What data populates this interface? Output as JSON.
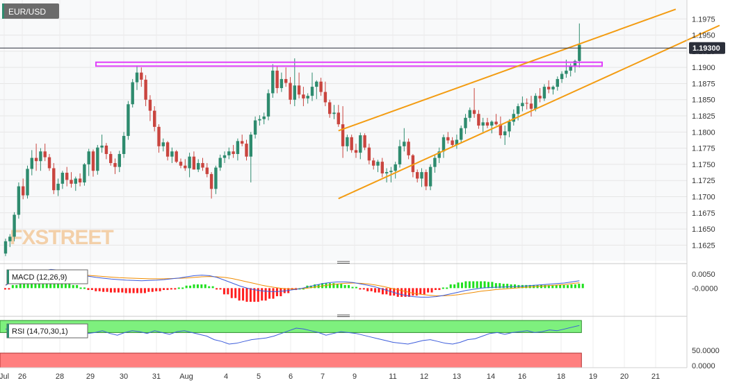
{
  "symbol": "EUR/USD",
  "watermark": "FXSTREET",
  "current_price_label": "1.19300",
  "colors": {
    "bull": "#2e8b6e",
    "bear": "#c9453f",
    "channel": "#f39c12",
    "resistance": "#e040fb",
    "macd_line": "#3b5bdb",
    "signal_line": "#f08c00",
    "hist_pos": "#1ee01e",
    "hist_neg": "#ff1e1e",
    "rsi_line": "#3b5bdb",
    "rsi_overbought": "#7ef07e",
    "rsi_oversold": "#ff7f7f"
  },
  "chart_data": [
    {
      "type": "candlestick",
      "title": "EUR/USD",
      "ylim": [
        1.1605,
        1.2
      ],
      "y_ticks": [
        "1.1975",
        "1.1950",
        "1.1925",
        "1.1900",
        "1.1875",
        "1.1850",
        "1.1825",
        "1.1800",
        "1.1775",
        "1.1750",
        "1.1725",
        "1.1700",
        "1.1675",
        "1.1650",
        "1.1625"
      ],
      "x_ticks": [
        "Jul",
        "26",
        "28",
        "29",
        "30",
        "31",
        "Aug",
        "4",
        "5",
        "6",
        "7",
        "9",
        "11",
        "12",
        "13",
        "14",
        "16",
        "18",
        "19",
        "20",
        "21"
      ],
      "last_price": 1.193,
      "candles": [
        [
          1.1612,
          1.1635,
          1.1608,
          1.1631
        ],
        [
          1.1631,
          1.1642,
          1.1622,
          1.1638
        ],
        [
          1.1638,
          1.1676,
          1.1631,
          1.1672
        ],
        [
          1.1672,
          1.1722,
          1.1666,
          1.1716
        ],
        [
          1.1716,
          1.1728,
          1.1696,
          1.1702
        ],
        [
          1.1702,
          1.1748,
          1.1697,
          1.1743
        ],
        [
          1.1743,
          1.1772,
          1.1733,
          1.176
        ],
        [
          1.176,
          1.1782,
          1.174,
          1.1755
        ],
        [
          1.1755,
          1.1775,
          1.174,
          1.177
        ],
        [
          1.177,
          1.1782,
          1.1755,
          1.1761
        ],
        [
          1.1761,
          1.1766,
          1.174,
          1.1744
        ],
        [
          1.1744,
          1.1752,
          1.1704,
          1.171
        ],
        [
          1.171,
          1.1728,
          1.1701,
          1.172
        ],
        [
          1.172,
          1.174,
          1.1712,
          1.1737
        ],
        [
          1.1737,
          1.1746,
          1.1716,
          1.1726
        ],
        [
          1.1726,
          1.1738,
          1.1714,
          1.172
        ],
        [
          1.172,
          1.1731,
          1.1709,
          1.1728
        ],
        [
          1.1728,
          1.1736,
          1.1716,
          1.1722
        ],
        [
          1.1722,
          1.1752,
          1.1717,
          1.175
        ],
        [
          1.175,
          1.1774,
          1.1732,
          1.177
        ],
        [
          1.177,
          1.1773,
          1.1731,
          1.174
        ],
        [
          1.174,
          1.178,
          1.1734,
          1.1776
        ],
        [
          1.1776,
          1.1796,
          1.1768,
          1.1779
        ],
        [
          1.1779,
          1.1783,
          1.1758,
          1.1766
        ],
        [
          1.1766,
          1.177,
          1.1748,
          1.1752
        ],
        [
          1.1752,
          1.1759,
          1.1735,
          1.1746
        ],
        [
          1.1746,
          1.1771,
          1.1738,
          1.1766
        ],
        [
          1.1766,
          1.18,
          1.176,
          1.1794
        ],
        [
          1.1794,
          1.1848,
          1.1788,
          1.1843
        ],
        [
          1.1843,
          1.1882,
          1.1838,
          1.1877
        ],
        [
          1.1877,
          1.1903,
          1.1865,
          1.1892
        ],
        [
          1.1892,
          1.19,
          1.187,
          1.1881
        ],
        [
          1.1881,
          1.1888,
          1.184,
          1.185
        ],
        [
          1.185,
          1.1857,
          1.1817,
          1.1833
        ],
        [
          1.1833,
          1.184,
          1.1801,
          1.1808
        ],
        [
          1.1808,
          1.1812,
          1.1768,
          1.1778
        ],
        [
          1.1778,
          1.179,
          1.177,
          1.1784
        ],
        [
          1.1784,
          1.1786,
          1.1756,
          1.1762
        ],
        [
          1.1762,
          1.1776,
          1.1752,
          1.177
        ],
        [
          1.177,
          1.1772,
          1.1752,
          1.1754
        ],
        [
          1.1754,
          1.1759,
          1.1744,
          1.1748
        ],
        [
          1.1748,
          1.1758,
          1.174,
          1.1744
        ],
        [
          1.1744,
          1.1768,
          1.173,
          1.1762
        ],
        [
          1.1762,
          1.177,
          1.1742,
          1.1742
        ],
        [
          1.1742,
          1.1758,
          1.1738,
          1.1752
        ],
        [
          1.1752,
          1.176,
          1.174,
          1.1745
        ],
        [
          1.1745,
          1.1752,
          1.173,
          1.1735
        ],
        [
          1.1735,
          1.1738,
          1.1697,
          1.1712
        ],
        [
          1.1712,
          1.1748,
          1.1704,
          1.1745
        ],
        [
          1.1745,
          1.1765,
          1.174,
          1.176
        ],
        [
          1.176,
          1.177,
          1.1752,
          1.1764
        ],
        [
          1.1764,
          1.1776,
          1.1758,
          1.177
        ],
        [
          1.177,
          1.178,
          1.176,
          1.1766
        ],
        [
          1.1766,
          1.179,
          1.1756,
          1.1786
        ],
        [
          1.1786,
          1.1796,
          1.1778,
          1.1782
        ],
        [
          1.1782,
          1.1788,
          1.1756,
          1.1762
        ],
        [
          1.1762,
          1.18,
          1.1722,
          1.1796
        ],
        [
          1.1796,
          1.1824,
          1.179,
          1.1818
        ],
        [
          1.1818,
          1.1826,
          1.181,
          1.182
        ],
        [
          1.182,
          1.183,
          1.1812,
          1.1824
        ],
        [
          1.1824,
          1.1866,
          1.1818,
          1.186
        ],
        [
          1.186,
          1.1905,
          1.1853,
          1.1895
        ],
        [
          1.1895,
          1.1902,
          1.186,
          1.1868
        ],
        [
          1.1868,
          1.1892,
          1.1862,
          1.1882
        ],
        [
          1.1882,
          1.19,
          1.187,
          1.1876
        ],
        [
          1.1876,
          1.1885,
          1.1843,
          1.185
        ],
        [
          1.185,
          1.1914,
          1.184,
          1.1872
        ],
        [
          1.1872,
          1.1892,
          1.1852,
          1.1858
        ],
        [
          1.1858,
          1.187,
          1.184,
          1.1852
        ],
        [
          1.1852,
          1.186,
          1.1844,
          1.1856
        ],
        [
          1.1856,
          1.1892,
          1.1848,
          1.187
        ],
        [
          1.187,
          1.188,
          1.1851,
          1.1878
        ],
        [
          1.1878,
          1.1884,
          1.1856,
          1.1862
        ],
        [
          1.1862,
          1.1878,
          1.184,
          1.1846
        ],
        [
          1.1846,
          1.185,
          1.1822,
          1.1828
        ],
        [
          1.1828,
          1.1842,
          1.182,
          1.183
        ],
        [
          1.183,
          1.1842,
          1.1808,
          1.1812
        ],
        [
          1.1812,
          1.184,
          1.176,
          1.1778
        ],
        [
          1.1778,
          1.1796,
          1.177,
          1.1792
        ],
        [
          1.1792,
          1.1796,
          1.1768,
          1.1772
        ],
        [
          1.1772,
          1.1782,
          1.176,
          1.1768
        ],
        [
          1.1768,
          1.1799,
          1.1758,
          1.1795
        ],
        [
          1.1795,
          1.1798,
          1.1772,
          1.1776
        ],
        [
          1.1776,
          1.1782,
          1.175,
          1.1756
        ],
        [
          1.1756,
          1.176,
          1.1742,
          1.1748
        ],
        [
          1.1748,
          1.1757,
          1.1738,
          1.1754
        ],
        [
          1.1754,
          1.176,
          1.173,
          1.1736
        ],
        [
          1.1736,
          1.1744,
          1.1722,
          1.1738
        ],
        [
          1.1738,
          1.1746,
          1.1722,
          1.174
        ],
        [
          1.174,
          1.1754,
          1.1728,
          1.175
        ],
        [
          1.175,
          1.1788,
          1.1745,
          1.1778
        ],
        [
          1.1778,
          1.1806,
          1.177,
          1.1785
        ],
        [
          1.1785,
          1.179,
          1.1758,
          1.1764
        ],
        [
          1.1764,
          1.1766,
          1.173,
          1.1738
        ],
        [
          1.1738,
          1.1742,
          1.1722,
          1.1728
        ],
        [
          1.1728,
          1.1744,
          1.1715,
          1.1738
        ],
        [
          1.1738,
          1.1742,
          1.171,
          1.1716
        ],
        [
          1.1716,
          1.175,
          1.171,
          1.1746
        ],
        [
          1.1746,
          1.1765,
          1.1737,
          1.176
        ],
        [
          1.176,
          1.1776,
          1.1752,
          1.177
        ],
        [
          1.177,
          1.1796,
          1.176,
          1.1792
        ],
        [
          1.1792,
          1.18,
          1.1782,
          1.1787
        ],
        [
          1.1787,
          1.1792,
          1.1776,
          1.178
        ],
        [
          1.178,
          1.1796,
          1.1774,
          1.1788
        ],
        [
          1.1788,
          1.181,
          1.1784,
          1.1806
        ],
        [
          1.1806,
          1.1828,
          1.1797,
          1.1822
        ],
        [
          1.1822,
          1.1838,
          1.1816,
          1.1834
        ],
        [
          1.1834,
          1.1868,
          1.1822,
          1.1828
        ],
        [
          1.1828,
          1.1834,
          1.1805,
          1.181
        ],
        [
          1.181,
          1.1822,
          1.18,
          1.1815
        ],
        [
          1.1815,
          1.1822,
          1.1806,
          1.181
        ],
        [
          1.181,
          1.1818,
          1.1798,
          1.1816
        ],
        [
          1.1816,
          1.1828,
          1.181,
          1.1812
        ],
        [
          1.1812,
          1.1824,
          1.179,
          1.1795
        ],
        [
          1.1795,
          1.181,
          1.178,
          1.1801
        ],
        [
          1.1801,
          1.182,
          1.1792,
          1.1816
        ],
        [
          1.1816,
          1.1835,
          1.181,
          1.1828
        ],
        [
          1.1828,
          1.1844,
          1.1818,
          1.184
        ],
        [
          1.184,
          1.1855,
          1.1832,
          1.1845
        ],
        [
          1.1845,
          1.1852,
          1.1835,
          1.1844
        ],
        [
          1.1844,
          1.1856,
          1.1824,
          1.1836
        ],
        [
          1.1836,
          1.186,
          1.1832,
          1.1856
        ],
        [
          1.1856,
          1.1868,
          1.1846,
          1.1852
        ],
        [
          1.1852,
          1.1874,
          1.1848,
          1.187
        ],
        [
          1.187,
          1.188,
          1.186,
          1.1866
        ],
        [
          1.1866,
          1.1872,
          1.1858,
          1.187
        ],
        [
          1.187,
          1.1886,
          1.1864,
          1.1882
        ],
        [
          1.1882,
          1.1894,
          1.1876,
          1.189
        ],
        [
          1.189,
          1.1912,
          1.1884,
          1.1895
        ],
        [
          1.1895,
          1.1906,
          1.1886,
          1.1902
        ],
        [
          1.1902,
          1.1912,
          1.1892,
          1.191
        ],
        [
          1.191,
          1.1968,
          1.19,
          1.1935
        ]
      ],
      "channel_upper": [
        [
          1.1802,
          76
        ],
        [
          1.199,
          153
        ]
      ],
      "channel_lower": [
        [
          1.1697,
          76
        ],
        [
          1.1965,
          163
        ]
      ],
      "resistance_zone": [
        1.1908,
        1.1902
      ]
    },
    {
      "type": "line",
      "title": "MACD (12,26,9)",
      "ylim": [
        -0.0085,
        0.0072
      ],
      "y_ticks": [
        "0.0050",
        "-0.0000"
      ],
      "series": [
        {
          "name": "MACD",
          "values": [
            0.001,
            0.0025,
            0.004,
            0.0052,
            0.0058,
            0.0062,
            0.0066,
            0.0064,
            0.006,
            0.0054,
            0.0048,
            0.0042,
            0.0038,
            0.0035,
            0.0032,
            0.003,
            0.0028,
            0.0027,
            0.0026,
            0.0027,
            0.0028,
            0.003,
            0.0033,
            0.0036,
            0.004,
            0.0044,
            0.0046,
            0.0044,
            0.0038,
            0.0028,
            0.0018,
            0.0008,
            0.0,
            -0.0006,
            -0.001,
            -0.0012,
            -0.0012,
            -0.001,
            -0.0006,
            -0.0002,
            0.0004,
            0.001,
            0.0016,
            0.002,
            0.0022,
            0.0022,
            0.002,
            0.0015,
            0.001,
            0.0004,
            -0.0004,
            -0.0012,
            -0.002,
            -0.0026,
            -0.003,
            -0.0032,
            -0.0032,
            -0.003,
            -0.0026,
            -0.002,
            -0.0014,
            -0.0008,
            -0.0004,
            0.0,
            0.0002,
            0.0003,
            0.0004,
            0.0005,
            0.0006,
            0.0008,
            0.001,
            0.0012,
            0.0014,
            0.0016,
            0.0018,
            0.0022,
            0.0026
          ]
        },
        {
          "name": "Signal",
          "values": [
            0.0012,
            0.002,
            0.003,
            0.004,
            0.0046,
            0.005,
            0.0052,
            0.0052,
            0.0051,
            0.0049,
            0.0047,
            0.0045,
            0.0043,
            0.0041,
            0.0039,
            0.0037,
            0.0036,
            0.0035,
            0.0034,
            0.0033,
            0.0033,
            0.0033,
            0.0034,
            0.0035,
            0.0036,
            0.0038,
            0.004,
            0.0041,
            0.004,
            0.0038,
            0.0034,
            0.0028,
            0.0022,
            0.0016,
            0.001,
            0.0005,
            0.0001,
            -0.0002,
            -0.0003,
            -0.0002,
            0.0,
            0.0004,
            0.0008,
            0.0012,
            0.0015,
            0.0017,
            0.0018,
            0.0017,
            0.0015,
            0.0011,
            0.0006,
            0.0,
            -0.0006,
            -0.0012,
            -0.0018,
            -0.0022,
            -0.0025,
            -0.0027,
            -0.0027,
            -0.0026,
            -0.0023,
            -0.0019,
            -0.0015,
            -0.0011,
            -0.0008,
            -0.0005,
            -0.0003,
            -0.0001,
            0.0001,
            0.0003,
            0.0005,
            0.0007,
            0.0009,
            0.0011,
            0.0013,
            0.0016,
            0.0019
          ]
        }
      ]
    },
    {
      "type": "line",
      "title": "RSI (14,70,30,1)",
      "ylim": [
        0,
        100
      ],
      "y_ticks": [
        "50.0000",
        "0.0000"
      ],
      "overbought": 70,
      "oversold": 30,
      "series": [
        {
          "name": "RSI",
          "values": [
            74,
            73,
            71,
            72,
            70,
            70,
            72,
            71,
            68,
            66,
            67,
            69,
            70,
            72,
            69,
            67,
            70,
            72,
            71,
            69,
            72,
            70,
            68,
            71,
            72,
            70,
            68,
            66,
            62,
            60,
            57,
            58,
            60,
            62,
            63,
            64,
            66,
            69,
            72,
            75,
            74,
            72,
            70,
            67,
            69,
            71,
            70,
            69,
            67,
            65,
            63,
            61,
            59,
            58,
            57,
            59,
            61,
            62,
            60,
            58,
            57,
            59,
            62,
            63,
            66,
            69,
            70,
            68,
            70,
            71,
            72,
            70,
            71,
            73,
            72,
            74,
            76,
            78
          ]
        }
      ]
    }
  ]
}
